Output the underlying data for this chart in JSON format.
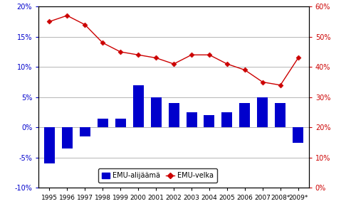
{
  "years": [
    "1995",
    "1996",
    "1997",
    "1998",
    "1999",
    "2000",
    "2001",
    "2002",
    "2003",
    "2004",
    "2005",
    "2006",
    "2007",
    "2008*",
    "2009*"
  ],
  "emu_alijaama": [
    -6.0,
    -3.5,
    -1.5,
    1.5,
    1.5,
    7.0,
    5.0,
    4.0,
    2.5,
    2.0,
    2.5,
    4.0,
    5.0,
    4.0,
    -2.5
  ],
  "emu_velka": [
    55.0,
    57.0,
    54.0,
    48.0,
    45.0,
    44.0,
    43.0,
    41.0,
    44.0,
    44.0,
    41.0,
    39.0,
    35.0,
    34.0,
    43.0
  ],
  "bar_color": "#0000CC",
  "line_color": "#CC0000",
  "marker_color": "#CC0000",
  "left_ylim": [
    -10,
    20
  ],
  "right_ylim": [
    0,
    60
  ],
  "left_yticks": [
    -10,
    -5,
    0,
    5,
    10,
    15,
    20
  ],
  "right_yticks": [
    0,
    10,
    20,
    30,
    40,
    50,
    60
  ],
  "left_yticklabels": [
    "-10%",
    "-5%",
    "0%",
    "5%",
    "10%",
    "15%",
    "20%"
  ],
  "right_yticklabels": [
    "0%",
    "10%",
    "20%",
    "30%",
    "40%",
    "50%",
    "60%"
  ],
  "legend_bar": "EMU-alijäämä",
  "legend_line": "EMU-velka",
  "left_axis_color": "#0000CC",
  "right_axis_color": "#CC0000",
  "grid_color": "#999999",
  "background_color": "#FFFFFF"
}
